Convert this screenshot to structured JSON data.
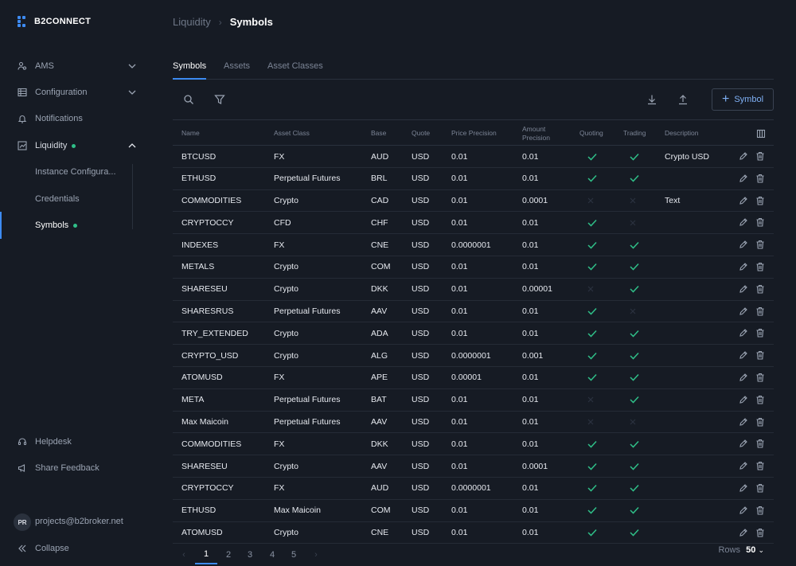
{
  "brand": {
    "name": "B2CONNECT"
  },
  "sidebar": {
    "items": [
      {
        "label": "AMS",
        "icon": "users-icon",
        "expandable": true
      },
      {
        "label": "Configuration",
        "icon": "table-icon",
        "expandable": true
      },
      {
        "label": "Notifications",
        "icon": "bell-icon",
        "expandable": false
      },
      {
        "label": "Liquidity",
        "icon": "chart-icon",
        "expandable": true,
        "expanded": true,
        "status_dot": true
      }
    ],
    "liquidity_sub": [
      {
        "label": "Instance Configura..."
      },
      {
        "label": "Credentials"
      },
      {
        "label": "Symbols",
        "active": true,
        "status_dot": true
      }
    ],
    "footer": {
      "helpdesk": "Helpdesk",
      "feedback": "Share Feedback",
      "avatar": "PR",
      "email": "projects@b2broker.net",
      "collapse": "Collapse"
    }
  },
  "breadcrumb": {
    "parent": "Liquidity",
    "separator": "›",
    "current": "Symbols"
  },
  "tabs": [
    "Symbols",
    "Assets",
    "Asset Classes"
  ],
  "toolbar": {
    "add_label": "Symbol"
  },
  "table": {
    "columns": [
      "Name",
      "Asset Class",
      "Base",
      "Quote",
      "Price Precision",
      "Amount Precision",
      "Quoting",
      "Trading",
      "Description"
    ],
    "rows": [
      {
        "name": "BTCUSD",
        "asset_class": "FX",
        "base": "AUD",
        "quote": "USD",
        "price": "0.01",
        "amount": "0.01",
        "quoting": true,
        "trading": true,
        "description": "Crypto USD"
      },
      {
        "name": "ETHUSD",
        "asset_class": "Perpetual Futures",
        "base": "BRL",
        "quote": "USD",
        "price": "0.01",
        "amount": "0.01",
        "quoting": true,
        "trading": true,
        "description": ""
      },
      {
        "name": "COMMODITIES",
        "asset_class": "Crypto",
        "base": "CAD",
        "quote": "USD",
        "price": "0.01",
        "amount": "0.0001",
        "quoting": false,
        "trading": false,
        "description": "Text"
      },
      {
        "name": "CRYPTOCCY",
        "asset_class": "CFD",
        "base": "CHF",
        "quote": "USD",
        "price": "0.01",
        "amount": "0.01",
        "quoting": true,
        "trading": false,
        "description": ""
      },
      {
        "name": "INDEXES",
        "asset_class": "FX",
        "base": "CNE",
        "quote": "USD",
        "price": "0.0000001",
        "amount": "0.01",
        "quoting": true,
        "trading": true,
        "description": ""
      },
      {
        "name": "METALS",
        "asset_class": "Crypto",
        "base": "COM",
        "quote": "USD",
        "price": "0.01",
        "amount": "0.01",
        "quoting": true,
        "trading": true,
        "description": ""
      },
      {
        "name": "SHARESEU",
        "asset_class": "Crypto",
        "base": "DKK",
        "quote": "USD",
        "price": "0.01",
        "amount": "0.00001",
        "quoting": false,
        "trading": true,
        "description": ""
      },
      {
        "name": "SHARESRUS",
        "asset_class": "Perpetual Futures",
        "base": "AAV",
        "quote": "USD",
        "price": "0.01",
        "amount": "0.01",
        "quoting": true,
        "trading": false,
        "description": ""
      },
      {
        "name": "TRY_EXTENDED",
        "asset_class": "Crypto",
        "base": "ADA",
        "quote": "USD",
        "price": "0.01",
        "amount": "0.01",
        "quoting": true,
        "trading": true,
        "description": ""
      },
      {
        "name": "CRYPTO_USD",
        "asset_class": "Crypto",
        "base": "ALG",
        "quote": "USD",
        "price": "0.0000001",
        "amount": "0.001",
        "quoting": true,
        "trading": true,
        "description": ""
      },
      {
        "name": "ATOMUSD",
        "asset_class": "FX",
        "base": "APE",
        "quote": "USD",
        "price": "0.00001",
        "amount": "0.01",
        "quoting": true,
        "trading": true,
        "description": ""
      },
      {
        "name": "META",
        "asset_class": "Perpetual Futures",
        "base": "BAT",
        "quote": "USD",
        "price": "0.01",
        "amount": "0.01",
        "quoting": false,
        "trading": true,
        "description": ""
      },
      {
        "name": "Max Maicoin",
        "asset_class": "Perpetual Futures",
        "base": "AAV",
        "quote": "USD",
        "price": "0.01",
        "amount": "0.01",
        "quoting": false,
        "trading": false,
        "description": ""
      },
      {
        "name": "COMMODITIES",
        "asset_class": "FX",
        "base": "DKK",
        "quote": "USD",
        "price": "0.01",
        "amount": "0.01",
        "quoting": true,
        "trading": true,
        "description": ""
      },
      {
        "name": "SHARESEU",
        "asset_class": "Crypto",
        "base": "AAV",
        "quote": "USD",
        "price": "0.01",
        "amount": "0.0001",
        "quoting": true,
        "trading": true,
        "description": ""
      },
      {
        "name": "CRYPTOCCY",
        "asset_class": "FX",
        "base": "AUD",
        "quote": "USD",
        "price": "0.0000001",
        "amount": "0.01",
        "quoting": true,
        "trading": true,
        "description": ""
      },
      {
        "name": "ETHUSD",
        "asset_class": "Max Maicoin",
        "base": "COM",
        "quote": "USD",
        "price": "0.01",
        "amount": "0.01",
        "quoting": true,
        "trading": true,
        "description": ""
      },
      {
        "name": "ATOMUSD",
        "asset_class": "Crypto",
        "base": "CNE",
        "quote": "USD",
        "price": "0.01",
        "amount": "0.01",
        "quoting": true,
        "trading": true,
        "description": ""
      }
    ]
  },
  "pagination": {
    "pages": [
      "1",
      "2",
      "3",
      "4",
      "5"
    ],
    "current_page": "1",
    "rows_label": "Rows",
    "rows_value": "50"
  }
}
